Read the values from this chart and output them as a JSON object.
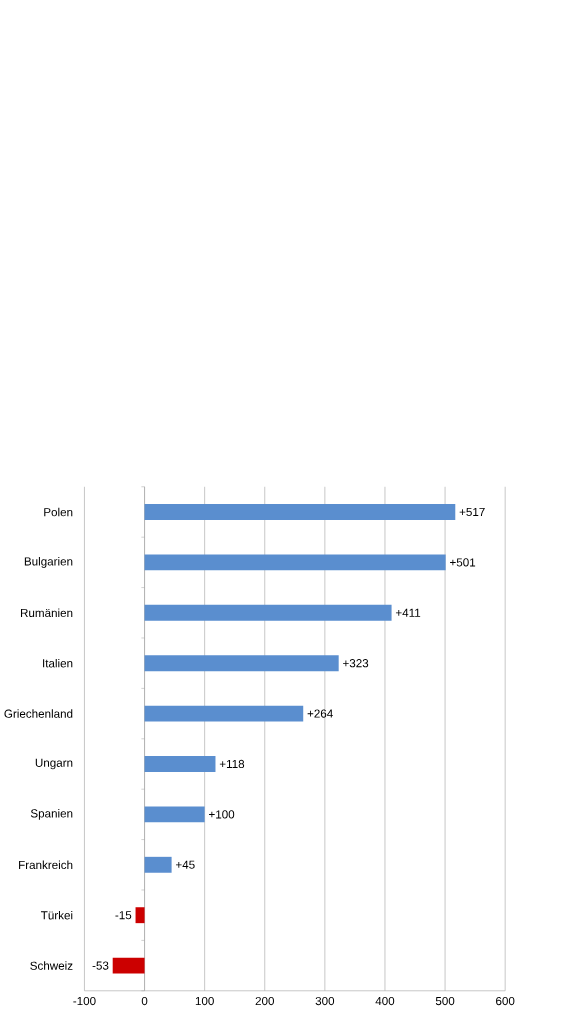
{
  "chart_data": {
    "type": "bar",
    "orientation": "horizontal",
    "categories": [
      "Polen",
      "Bulgarien",
      "Rumänien",
      "Italien",
      "Griechenland",
      "Ungarn",
      "Spanien",
      "Frankreich",
      "Türkei",
      "Schweiz"
    ],
    "values": [
      517,
      501,
      411,
      323,
      264,
      118,
      100,
      45,
      -15,
      -53
    ],
    "colors": [
      "#5a8ecf",
      "#5a8ecf",
      "#5a8ecf",
      "#5a8ecf",
      "#5a8ecf",
      "#5a8ecf",
      "#5a8ecf",
      "#5a8ecf",
      "#cc0000",
      "#cc0000"
    ],
    "value_labels": [
      "+517",
      "+501",
      "+411",
      "+323",
      "+264",
      "+118",
      "+100",
      "+45",
      "-15",
      "-53"
    ],
    "xlim": [
      -100,
      600
    ],
    "xticks": [
      -100,
      0,
      100,
      200,
      300,
      400,
      500,
      600
    ],
    "grid": "x"
  }
}
